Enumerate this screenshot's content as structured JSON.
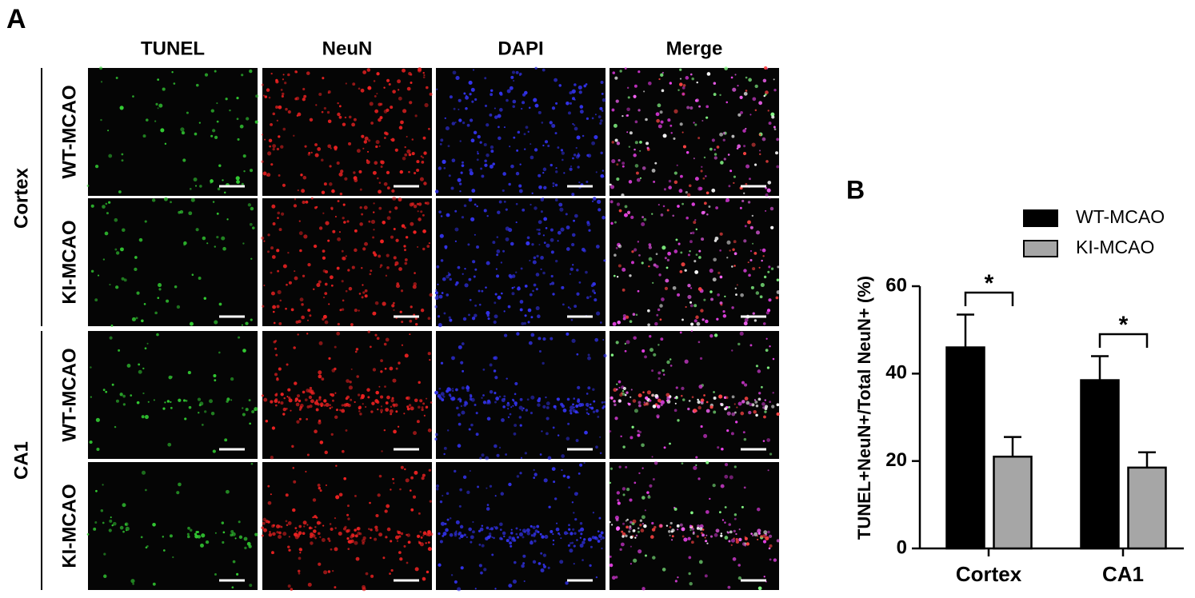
{
  "panel_a": {
    "label": "A",
    "columns": [
      "TUNEL",
      "NeuN",
      "DAPI",
      "Merge"
    ],
    "rows": [
      "WT-MCAO",
      "KI-MCAO",
      "WT-MCAO",
      "KI-MCAO"
    ],
    "groups": [
      "Cortex",
      "CA1"
    ]
  },
  "chart_data": {
    "type": "bar",
    "label": "B",
    "ylabel": "TUNEL+NeuN+/Total NeuN+ (%)",
    "categories": [
      "Cortex",
      "CA1"
    ],
    "series": [
      {
        "name": "WT-MCAO",
        "color": "#000000",
        "values": [
          46,
          38.5
        ],
        "errors": [
          7.5,
          5.5
        ]
      },
      {
        "name": "KI-MCAO",
        "color": "#a6a6a6",
        "values": [
          21,
          18.5
        ],
        "errors": [
          4.5,
          3.5
        ]
      }
    ],
    "ylim": [
      0,
      60
    ],
    "yticks": [
      0,
      20,
      40,
      60
    ],
    "annotations": [
      "*",
      "*"
    ]
  }
}
